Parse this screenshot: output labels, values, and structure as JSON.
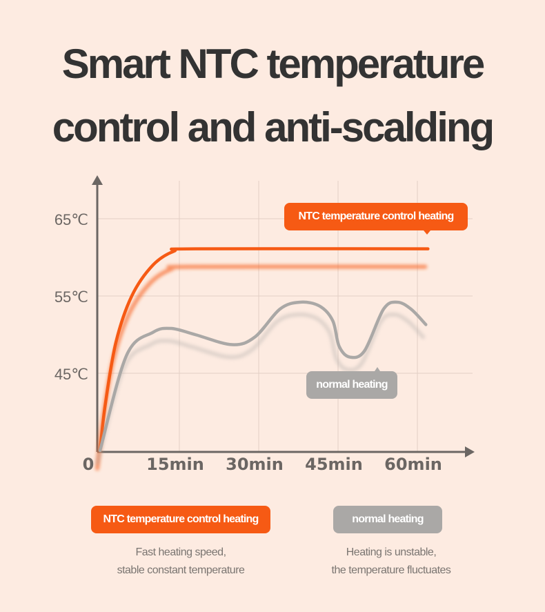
{
  "title_lines": [
    "Smart NTC temperature",
    "control and anti-scalding"
  ],
  "colors": {
    "ntc": "#f65a14",
    "normal": "#aaa8a6",
    "grid": "#e2cfc5",
    "axis": "#6b6663",
    "background": "#fdebe1"
  },
  "chart_data": {
    "type": "line",
    "xlabel": "",
    "ylabel": "",
    "x_ticks": [
      {
        "v": 0,
        "label": "0"
      },
      {
        "v": 15,
        "label": "15min"
      },
      {
        "v": 30,
        "label": "30min"
      },
      {
        "v": 45,
        "label": "45min"
      },
      {
        "v": 60,
        "label": "60min"
      }
    ],
    "y_ticks": [
      {
        "v": 65,
        "label": "65℃"
      },
      {
        "v": 55,
        "label": "55℃"
      },
      {
        "v": 45,
        "label": "45℃"
      }
    ],
    "xlim": [
      0,
      70
    ],
    "ylim": [
      35,
      68
    ],
    "grid": true,
    "series": [
      {
        "name": "NTC temperature control heating",
        "points": [
          [
            0,
            35
          ],
          [
            1,
            41
          ],
          [
            3,
            49
          ],
          [
            6,
            55
          ],
          [
            10,
            59
          ],
          [
            14,
            60.8
          ],
          [
            18,
            61.1
          ],
          [
            62,
            61.1
          ]
        ]
      },
      {
        "name": "normal heating",
        "points": [
          [
            0,
            35
          ],
          [
            5,
            47.3
          ],
          [
            10,
            50.3
          ],
          [
            13.5,
            50.8
          ],
          [
            18,
            50
          ],
          [
            25,
            48.7
          ],
          [
            29.3,
            49.7
          ],
          [
            34,
            53.3
          ],
          [
            37.8,
            54.2
          ],
          [
            41.5,
            53.7
          ],
          [
            44,
            51.8
          ],
          [
            45.2,
            48.5
          ],
          [
            47.2,
            47.1
          ],
          [
            50,
            47.9
          ],
          [
            53.6,
            53.3
          ],
          [
            56.2,
            54.2
          ],
          [
            58.8,
            53.3
          ],
          [
            61.6,
            51.3
          ]
        ]
      }
    ],
    "annotations": [
      "NTC temperature control heating",
      "normal heating"
    ]
  },
  "legend": [
    {
      "label": "NTC temperature control heating",
      "desc": [
        "Fast heating speed,",
        "stable constant temperature"
      ]
    },
    {
      "label": "normal heating",
      "desc": [
        "Heating is unstable,",
        "the temperature fluctuates"
      ]
    }
  ]
}
